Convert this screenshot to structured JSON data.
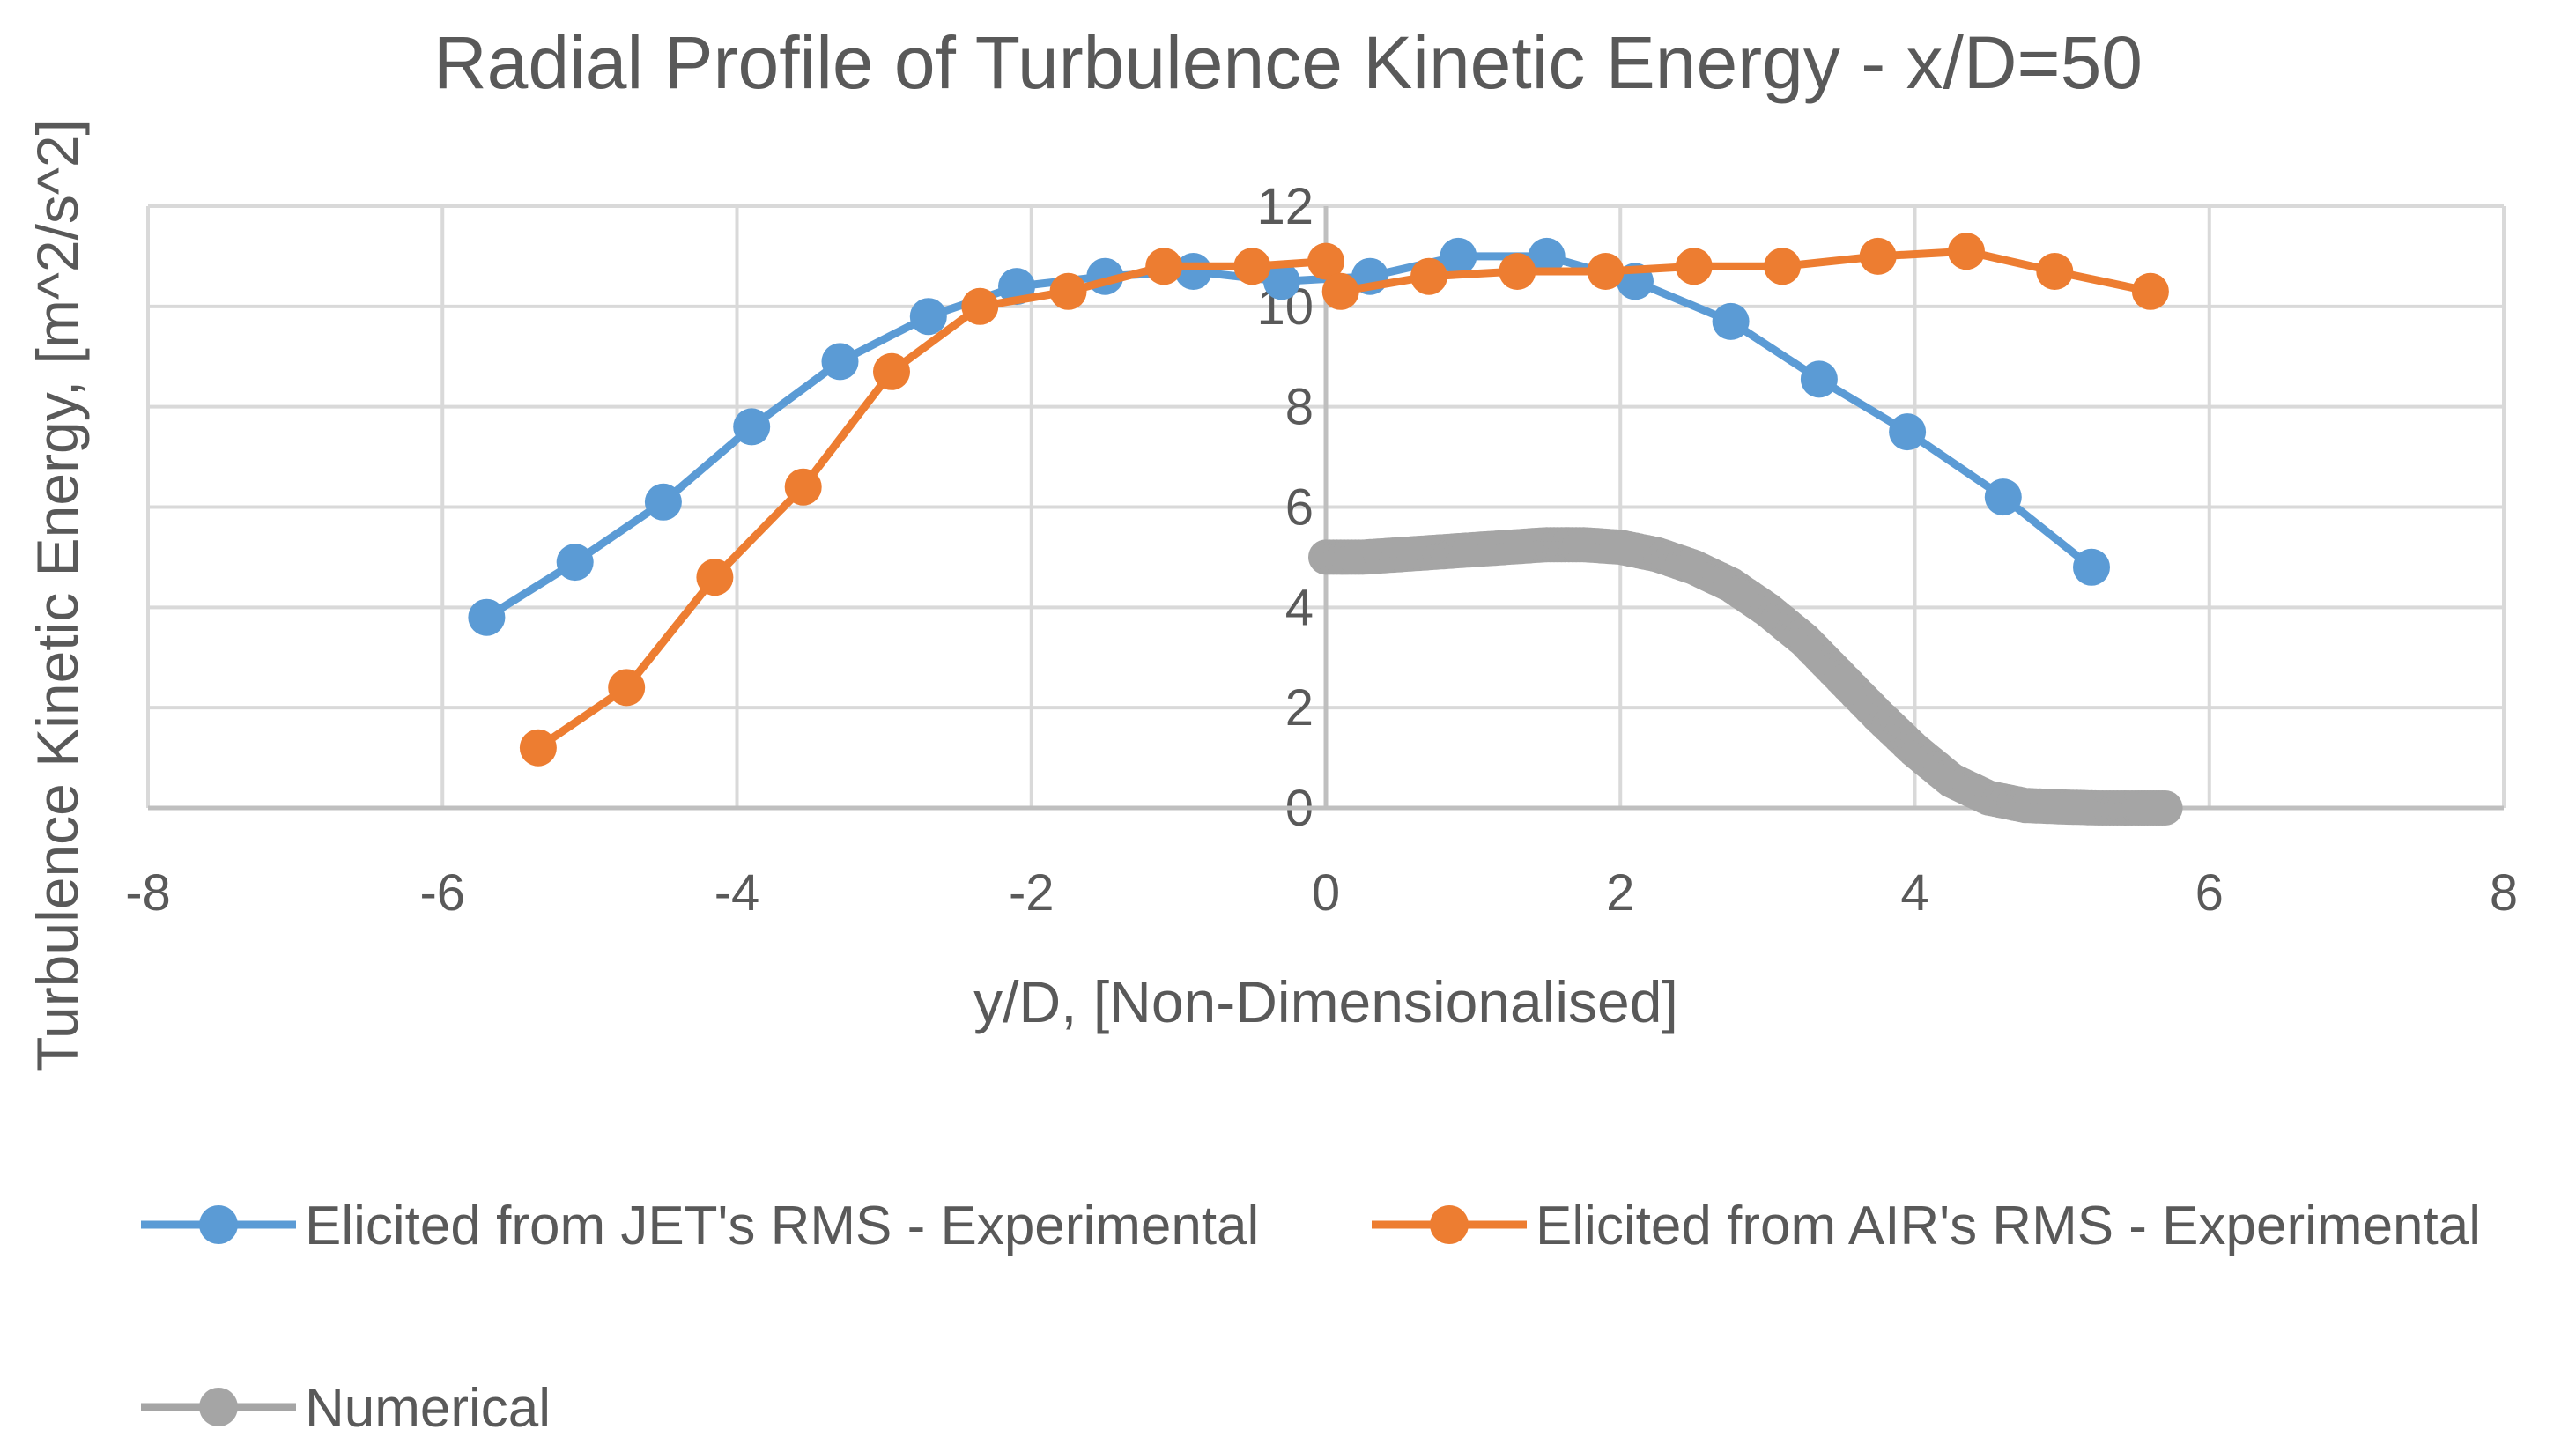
{
  "chart_data": {
    "type": "line",
    "title": "Radial Profile of Turbulence Kinetic Energy - x/D=50",
    "xlabel": "y/D, [Non-Dimensionalised]",
    "ylabel": "Turbulence Kinetic Energy, [m^2/s^2]",
    "xlim": [
      -8,
      8
    ],
    "ylim": [
      0,
      12
    ],
    "x_ticks": [
      -8,
      -6,
      -4,
      -2,
      0,
      2,
      4,
      6,
      8
    ],
    "y_ticks": [
      0,
      2,
      4,
      6,
      8,
      10,
      12
    ],
    "x_tick_labels": [
      "-8",
      "-6",
      "-4",
      "-2",
      "0",
      "2",
      "4",
      "6",
      "8"
    ],
    "y_tick_labels": [
      "0",
      "2",
      "4",
      "6",
      "8",
      "10",
      "12"
    ],
    "grid": true,
    "legend_position": "bottom",
    "series": [
      {
        "name": "Elicited from JET's RMS - Experimental",
        "color": "#5B9BD5",
        "x": [
          -5.7,
          -5.1,
          -4.5,
          -3.9,
          -3.3,
          -2.7,
          -2.1,
          -1.5,
          -0.9,
          -0.3,
          0.3,
          0.9,
          1.5,
          2.1,
          2.75,
          3.35,
          3.95,
          4.6,
          5.2
        ],
        "y": [
          3.8,
          4.9,
          6.1,
          7.6,
          8.9,
          9.8,
          10.4,
          10.6,
          10.7,
          10.5,
          10.6,
          11.0,
          11.0,
          10.5,
          9.7,
          8.55,
          7.5,
          6.2,
          4.8
        ]
      },
      {
        "name": "Elicited from AIR's RMS - Experimental",
        "color": "#ED7D31",
        "x": [
          -5.35,
          -4.75,
          -4.15,
          -3.55,
          -2.95,
          -2.35,
          -1.75,
          -1.1,
          -0.5,
          0.0,
          0.1,
          0.7,
          1.3,
          1.9,
          2.5,
          3.1,
          3.75,
          4.35,
          4.95,
          5.6
        ],
        "y": [
          1.2,
          2.4,
          4.6,
          6.4,
          8.7,
          10.0,
          10.3,
          10.8,
          10.8,
          10.9,
          10.3,
          10.6,
          10.7,
          10.7,
          10.8,
          10.8,
          11.0,
          11.1,
          10.7,
          10.3
        ]
      },
      {
        "name": "Numerical",
        "color": "#A5A5A5",
        "x": [
          0.0,
          0.25,
          0.5,
          0.75,
          1.0,
          1.25,
          1.5,
          1.75,
          2.0,
          2.25,
          2.5,
          2.75,
          3.0,
          3.25,
          3.5,
          3.75,
          4.0,
          4.25,
          4.5,
          4.75,
          5.0,
          5.25,
          5.5,
          5.7
        ],
        "y": [
          5.0,
          5.0,
          5.05,
          5.1,
          5.15,
          5.2,
          5.25,
          5.25,
          5.2,
          5.05,
          4.8,
          4.45,
          3.95,
          3.35,
          2.6,
          1.85,
          1.15,
          0.55,
          0.2,
          0.05,
          0.02,
          0.0,
          0.0,
          0.0
        ]
      }
    ]
  }
}
